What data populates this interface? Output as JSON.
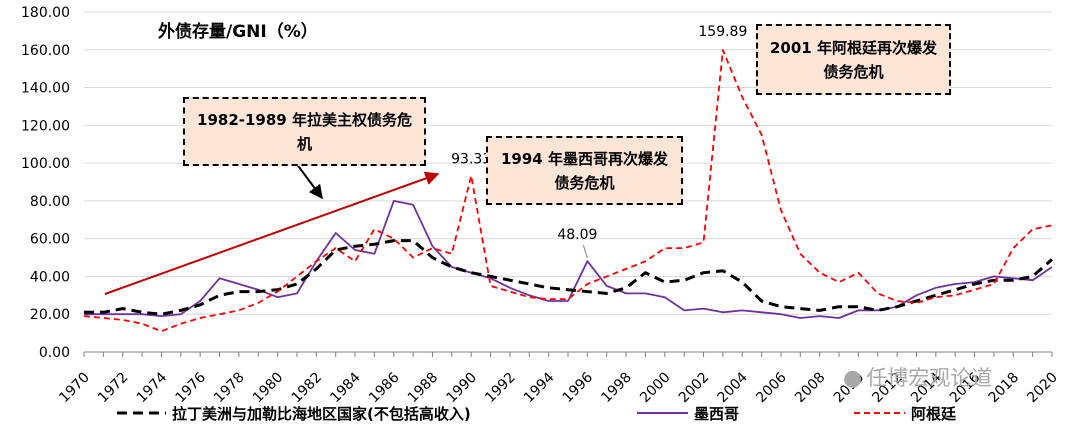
{
  "chart_data": {
    "type": "line",
    "title": "外债存量/GNI（%）",
    "ylim": [
      0,
      180
    ],
    "yticks": [
      "0.00",
      "20.00",
      "40.00",
      "60.00",
      "80.00",
      "100.00",
      "120.00",
      "140.00",
      "160.00",
      "180.00"
    ],
    "x_tick_labels": [
      "1970",
      "1972",
      "1974",
      "1976",
      "1978",
      "1980",
      "1982",
      "1984",
      "1986",
      "1988",
      "1990",
      "1992",
      "1994",
      "1996",
      "1998",
      "2000",
      "2002",
      "2004",
      "2006",
      "2008",
      "2010",
      "2012",
      "2014",
      "2016",
      "2018",
      "2020"
    ],
    "x": [
      1970,
      1971,
      1972,
      1973,
      1974,
      1975,
      1976,
      1977,
      1978,
      1979,
      1980,
      1981,
      1982,
      1983,
      1984,
      1985,
      1986,
      1987,
      1988,
      1989,
      1990,
      1991,
      1992,
      1993,
      1994,
      1995,
      1996,
      1997,
      1998,
      1999,
      2000,
      2001,
      2002,
      2003,
      2004,
      2005,
      2006,
      2007,
      2008,
      2009,
      2010,
      2011,
      2012,
      2013,
      2014,
      2015,
      2016,
      2017,
      2018,
      2019,
      2020
    ],
    "series": [
      {
        "name": "拉丁美洲与加勒比海地区国家(不包括高收入)",
        "color": "#000000",
        "style": "dash",
        "values": [
          21,
          21,
          23,
          21,
          20,
          22,
          25,
          30,
          32,
          32,
          33,
          36,
          44,
          54,
          56,
          57,
          59,
          59,
          50,
          45,
          42,
          40,
          38,
          36,
          34,
          33,
          32,
          31,
          34,
          42,
          37,
          38,
          42,
          43,
          37,
          27,
          24,
          23,
          22,
          24,
          24,
          22,
          24,
          27,
          30,
          33,
          36,
          38,
          38,
          40,
          49
        ]
      },
      {
        "name": "墨西哥",
        "color": "#7030a0",
        "style": "solid",
        "values": [
          20,
          20,
          20,
          20,
          19,
          20,
          27,
          39,
          36,
          33,
          29,
          31,
          48,
          63,
          54,
          52,
          80,
          78,
          56,
          45,
          42,
          39,
          34,
          30,
          27,
          27,
          48.09,
          35,
          31,
          31,
          29,
          22,
          23,
          21,
          22,
          21,
          20,
          18,
          19,
          18,
          22,
          22,
          24,
          30,
          34,
          36,
          37,
          40,
          39,
          38,
          45
        ]
      },
      {
        "name": "阿根廷",
        "color": "#ff0000",
        "style": "dash",
        "values": [
          19,
          18,
          17,
          15,
          11,
          15,
          18,
          20,
          22,
          26,
          32,
          40,
          48,
          55,
          48,
          65,
          60,
          50,
          55,
          52,
          93.33,
          35,
          32,
          29,
          28,
          28,
          36,
          40,
          44,
          48,
          55,
          55,
          58,
          159.89,
          135,
          115,
          75,
          52,
          42,
          37,
          42,
          31,
          27,
          26,
          29,
          30,
          33,
          36,
          55,
          65,
          67
        ]
      }
    ],
    "point_labels": [
      {
        "series": 2,
        "index": 20,
        "text": "93.33"
      },
      {
        "series": 1,
        "index": 26,
        "text": "48.09"
      },
      {
        "series": 2,
        "index": 33,
        "text": "159.89"
      }
    ],
    "annotations": [
      {
        "id": "callout-1982",
        "text": "1982-1989 年拉美主权债务危机"
      },
      {
        "id": "callout-1994",
        "text": "1994 年墨西哥再次爆发债务危机"
      },
      {
        "id": "callout-2001",
        "text": "2001 年阿根廷再次爆发债务危机"
      }
    ]
  },
  "watermark": "任博宏观论道"
}
